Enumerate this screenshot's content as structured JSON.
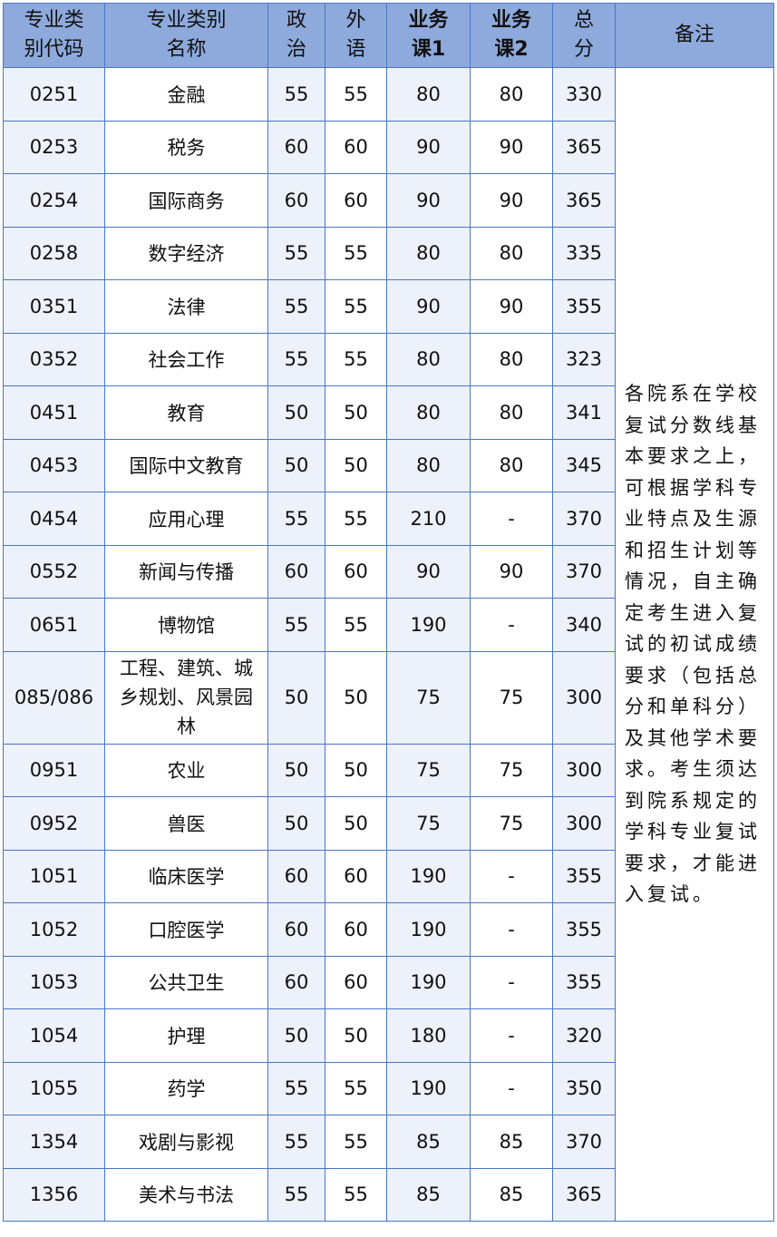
{
  "headers": {
    "code": "专业类别代码",
    "name": "专业类别名称",
    "politics": "政治",
    "language": "外语",
    "course1": "业务课1",
    "course2": "业务课2",
    "total": "总分",
    "remark": "备注"
  },
  "rows": [
    {
      "code": "0251",
      "name": "金融",
      "politics": "55",
      "language": "55",
      "course1": "80",
      "course2": "80",
      "total": "330"
    },
    {
      "code": "0253",
      "name": "税务",
      "politics": "60",
      "language": "60",
      "course1": "90",
      "course2": "90",
      "total": "365"
    },
    {
      "code": "0254",
      "name": "国际商务",
      "politics": "60",
      "language": "60",
      "course1": "90",
      "course2": "90",
      "total": "365"
    },
    {
      "code": "0258",
      "name": "数字经济",
      "politics": "55",
      "language": "55",
      "course1": "80",
      "course2": "80",
      "total": "335"
    },
    {
      "code": "0351",
      "name": "法律",
      "politics": "55",
      "language": "55",
      "course1": "90",
      "course2": "90",
      "total": "355"
    },
    {
      "code": "0352",
      "name": "社会工作",
      "politics": "55",
      "language": "55",
      "course1": "80",
      "course2": "80",
      "total": "323"
    },
    {
      "code": "0451",
      "name": "教育",
      "politics": "50",
      "language": "50",
      "course1": "80",
      "course2": "80",
      "total": "341"
    },
    {
      "code": "0453",
      "name": "国际中文教育",
      "politics": "50",
      "language": "50",
      "course1": "80",
      "course2": "80",
      "total": "345"
    },
    {
      "code": "0454",
      "name": "应用心理",
      "politics": "55",
      "language": "55",
      "course1": "210",
      "course2": "-",
      "total": "370"
    },
    {
      "code": "0552",
      "name": "新闻与传播",
      "politics": "60",
      "language": "60",
      "course1": "90",
      "course2": "90",
      "total": "370"
    },
    {
      "code": "0651",
      "name": "博物馆",
      "politics": "55",
      "language": "55",
      "course1": "190",
      "course2": "-",
      "total": "340"
    },
    {
      "code": "085/086",
      "name": "工程、建筑、城乡规划、风景园林",
      "politics": "50",
      "language": "50",
      "course1": "75",
      "course2": "75",
      "total": "300"
    },
    {
      "code": "0951",
      "name": "农业",
      "politics": "50",
      "language": "50",
      "course1": "75",
      "course2": "75",
      "total": "300"
    },
    {
      "code": "0952",
      "name": "兽医",
      "politics": "50",
      "language": "50",
      "course1": "75",
      "course2": "75",
      "total": "300"
    },
    {
      "code": "1051",
      "name": "临床医学",
      "politics": "60",
      "language": "60",
      "course1": "190",
      "course2": "-",
      "total": "355"
    },
    {
      "code": "1052",
      "name": "口腔医学",
      "politics": "60",
      "language": "60",
      "course1": "190",
      "course2": "-",
      "total": "355"
    },
    {
      "code": "1053",
      "name": "公共卫生",
      "politics": "60",
      "language": "60",
      "course1": "190",
      "course2": "-",
      "total": "355"
    },
    {
      "code": "1054",
      "name": "护理",
      "politics": "50",
      "language": "50",
      "course1": "180",
      "course2": "-",
      "total": "320"
    },
    {
      "code": "1055",
      "name": "药学",
      "politics": "55",
      "language": "55",
      "course1": "190",
      "course2": "-",
      "total": "350"
    },
    {
      "code": "1354",
      "name": "戏剧与影视",
      "politics": "55",
      "language": "55",
      "course1": "85",
      "course2": "85",
      "total": "370"
    },
    {
      "code": "1356",
      "name": "美术与书法",
      "politics": "55",
      "language": "55",
      "course1": "85",
      "course2": "85",
      "total": "365"
    }
  ],
  "remark": "各院系在学校复试分数线基本要求之上，可根据学科专业特点及生源和招生计划等情况，自主确定考生进入复试的初试成绩要求（包括总分和单科分）及其他学术要求。考生须达到院系规定的学科专业复试要求，才能进入复试。",
  "colors": {
    "header": "#8eaadc",
    "border": "#4a76c6",
    "shade": "#edf1fa"
  }
}
